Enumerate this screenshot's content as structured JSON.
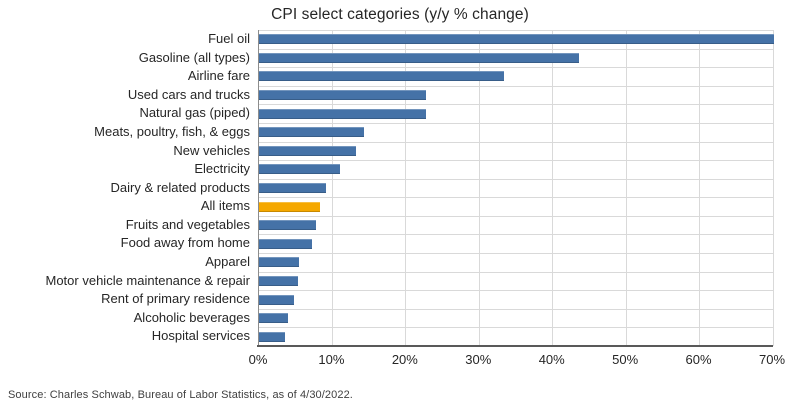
{
  "title": "CPI select categories (y/y % change)",
  "source": "Source: Charles Schwab, Bureau of Labor Statistics, as of 4/30/2022.",
  "chart_data": {
    "type": "bar",
    "orientation": "horizontal",
    "title": "CPI select categories (y/y % change)",
    "categories": [
      "Fuel oil",
      "Gasoline (all types)",
      "Airline fare",
      "Used cars and trucks",
      "Natural gas (piped)",
      "Meats, poultry, fish, & eggs",
      "New vehicles",
      "Electricity",
      "Dairy & related products",
      "All items",
      "Fruits and vegetables",
      "Food away from home",
      "Apparel",
      "Motor vehicle maintenance & repair",
      "Rent of primary residence",
      "Alcoholic beverages",
      "Hospital services"
    ],
    "values": [
      70.1,
      43.6,
      33.3,
      22.7,
      22.7,
      14.3,
      13.2,
      11.0,
      9.1,
      8.3,
      7.8,
      7.2,
      5.4,
      5.3,
      4.8,
      4.0,
      3.6
    ],
    "highlight_category": "All items",
    "highlight_index": 9,
    "xlabel": "",
    "ylabel": "",
    "xlim": [
      0,
      70
    ],
    "tick_values": [
      0,
      10,
      20,
      30,
      40,
      50,
      60,
      70
    ],
    "xticks": [
      "0%",
      "10%",
      "20%",
      "30%",
      "40%",
      "50%",
      "60%",
      "70%"
    ],
    "grid": true,
    "legend": "none",
    "colors": {
      "bar": "#4572A7",
      "highlight": "#F5A800",
      "gridline": "#D9D9D9",
      "axis_line": "#595959",
      "text": "#262626"
    }
  }
}
